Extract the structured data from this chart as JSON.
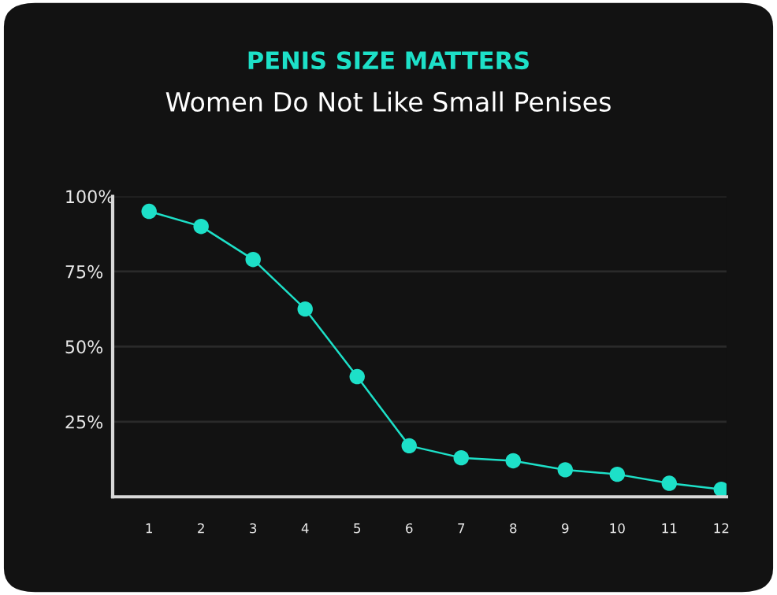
{
  "chart_data": {
    "type": "line",
    "title": "PENIS SIZE MATTERS",
    "subtitle": "Women Do Not Like Small Penises",
    "categories": [
      "1",
      "2",
      "3",
      "4",
      "5",
      "6",
      "7",
      "8",
      "9",
      "10",
      "11",
      "12"
    ],
    "series": [
      {
        "color": "#1de0c8",
        "values": [
          95,
          90,
          79,
          62.5,
          40,
          17,
          13,
          12,
          9,
          7.5,
          4.5,
          2.5
        ]
      }
    ],
    "ylim": [
      0,
      100
    ],
    "yticks": [
      {
        "value": 25,
        "label": "25%"
      },
      {
        "value": 50,
        "label": "50%"
      },
      {
        "value": 75,
        "label": "75%"
      },
      {
        "value": 100,
        "label": "100%"
      }
    ],
    "grid": "y",
    "marker": "circle",
    "line_style": "solid"
  }
}
